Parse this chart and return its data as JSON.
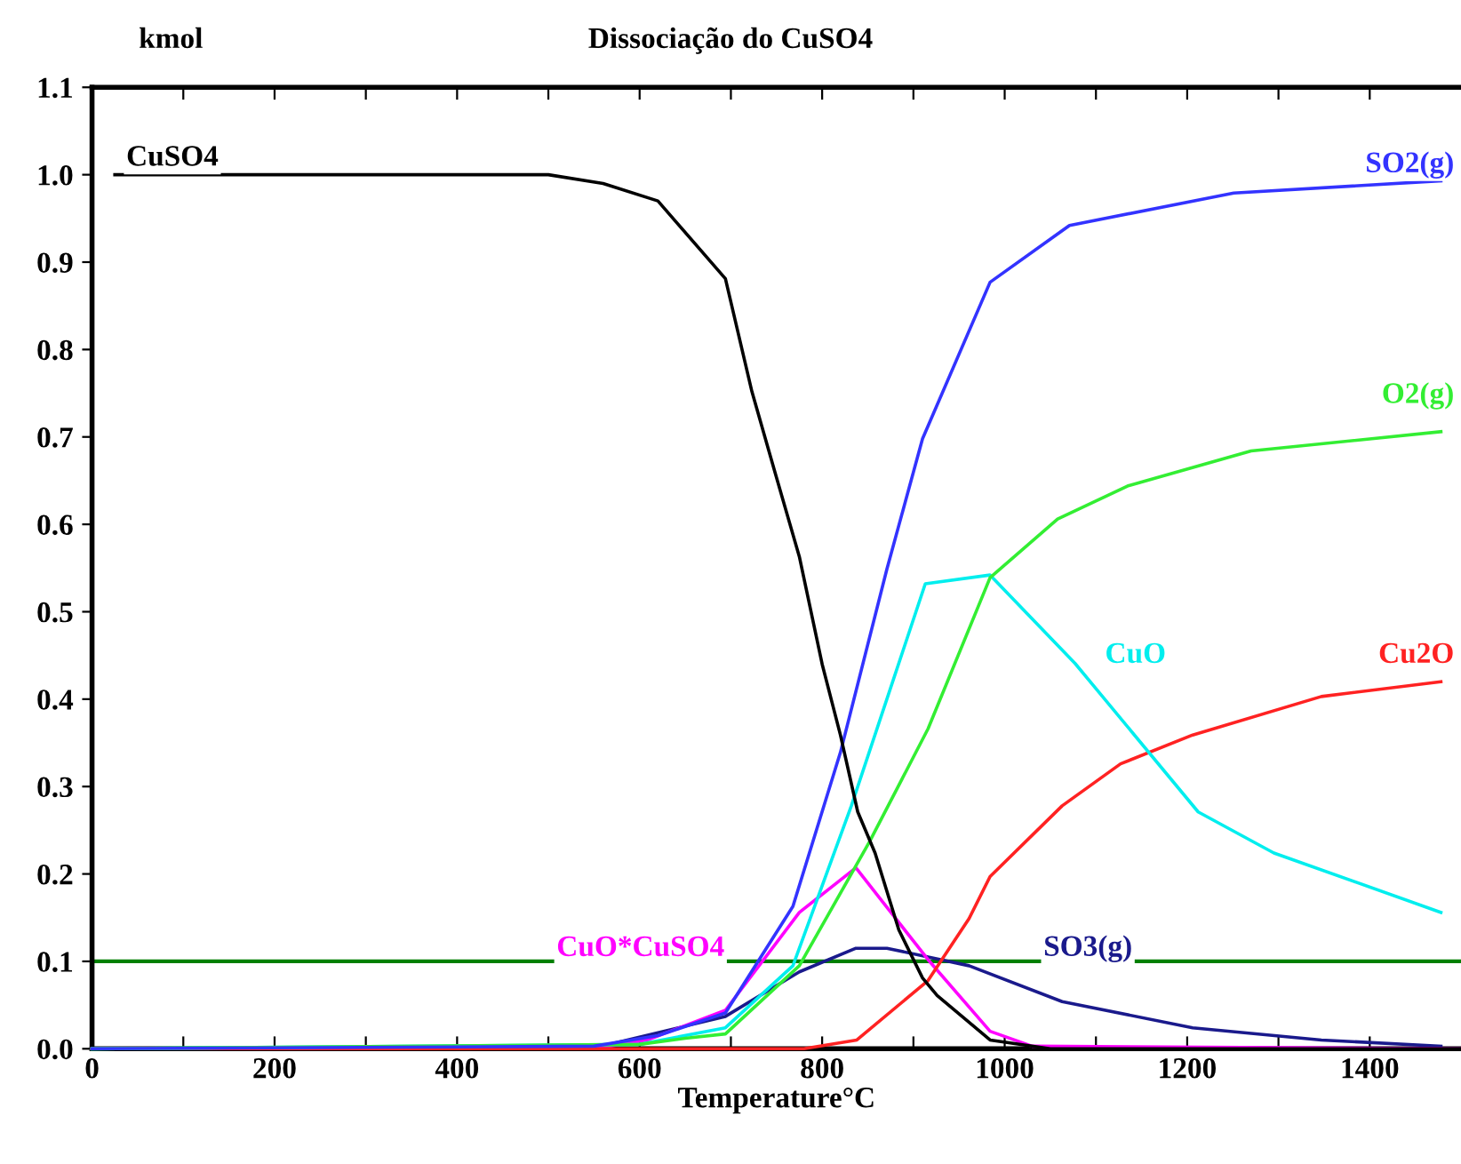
{
  "chart_data": {
    "type": "line",
    "title": "Dissociação do CuSO4",
    "ylabel": "kmol",
    "xlabel": "Temperature°C",
    "xlim": [
      0,
      1500
    ],
    "ylim": [
      0,
      1.1
    ],
    "xticks": [
      0,
      {
        "value": 100,
        "label": null
      },
      200,
      {
        "value": 300,
        "label": null
      },
      400,
      {
        "value": 500,
        "label": null
      },
      600,
      {
        "value": 700,
        "label": null
      },
      800,
      {
        "value": 900,
        "label": null
      },
      1000,
      {
        "value": 1100,
        "label": null
      },
      1200,
      {
        "value": 1300,
        "label": null
      },
      1400
    ],
    "yticks": [
      {
        "value": 0,
        "label": "0.0"
      },
      {
        "value": 0.1,
        "label": "0.1"
      },
      {
        "value": 0.2,
        "label": "0.2"
      },
      {
        "value": 0.3,
        "label": "0.3"
      },
      {
        "value": 0.4,
        "label": "0.4"
      },
      {
        "value": 0.5,
        "label": "0.5"
      },
      {
        "value": 0.6,
        "label": "0.6"
      },
      {
        "value": 0.7,
        "label": "0.7"
      },
      {
        "value": 0.8,
        "label": "0.8"
      },
      {
        "value": 0.9,
        "label": "0.9"
      },
      {
        "value": 1.0,
        "label": "1.0"
      },
      {
        "value": 1.1,
        "label": "1.1"
      }
    ],
    "grid": false,
    "legend": false,
    "marker": "none",
    "line_style": "solid",
    "ref_lines": [
      {
        "axis": "y",
        "value": 0.1,
        "color": "#008000"
      }
    ],
    "series": [
      {
        "name": "CuSO4",
        "color": "#000000",
        "x": [
          25,
          500,
          560,
          620,
          694,
          723,
          749,
          775,
          800,
          820,
          839,
          858,
          884,
          910,
          926,
          984,
          1050,
          1500
        ],
        "values": [
          1.0,
          1.0,
          0.99,
          0.97,
          0.881,
          0.752,
          0.657,
          0.563,
          0.44,
          0.359,
          0.271,
          0.224,
          0.136,
          0.081,
          0.061,
          0.01,
          0.0,
          0.0
        ]
      },
      {
        "name": "SO2(g)",
        "color": "#3333ff",
        "x": [
          0,
          550,
          620,
          694,
          768,
          820,
          871,
          910,
          984,
          1071,
          1251,
          1478
        ],
        "values": [
          0.0,
          0.003,
          0.015,
          0.041,
          0.163,
          0.339,
          0.549,
          0.698,
          0.877,
          0.942,
          0.979,
          0.993
        ]
      },
      {
        "name": "O2(g)",
        "color": "#33ee33",
        "x": [
          0,
          600,
          650,
          694,
          775,
          852,
          916,
          984,
          1058,
          1135,
          1270,
          1478
        ],
        "values": [
          0.0,
          0.005,
          0.012,
          0.017,
          0.095,
          0.237,
          0.366,
          0.539,
          0.606,
          0.644,
          0.684,
          0.706
        ]
      },
      {
        "name": "CuO",
        "color": "#00eeee",
        "x": [
          0,
          600,
          694,
          768,
          832,
          913,
          984,
          1077,
          1212,
          1295,
          1478
        ],
        "values": [
          0.0,
          0.005,
          0.024,
          0.095,
          0.278,
          0.532,
          0.542,
          0.441,
          0.271,
          0.224,
          0.156
        ]
      },
      {
        "name": "Cu2O",
        "color": "#ff2222",
        "x": [
          0,
          780,
          838,
          916,
          961,
          984,
          1063,
          1127,
          1206,
          1347,
          1478
        ],
        "values": [
          0.0,
          0.0,
          0.01,
          0.078,
          0.149,
          0.197,
          0.278,
          0.326,
          0.359,
          0.403,
          0.42
        ]
      },
      {
        "name": "CuO*CuSO4",
        "color": "#ff00ff",
        "x": [
          0,
          550,
          608,
          694,
          775,
          837,
          916,
          984,
          1030,
          1500
        ],
        "values": [
          0.0,
          0.0,
          0.01,
          0.044,
          0.156,
          0.207,
          0.102,
          0.02,
          0.003,
          0.0
        ]
      },
      {
        "name": "SO3(g)",
        "color": "#1a1a8c",
        "x": [
          0,
          559,
          694,
          775,
          837,
          871,
          916,
          961,
          1063,
          1206,
          1347,
          1478
        ],
        "values": [
          0.0,
          0.003,
          0.037,
          0.088,
          0.115,
          0.115,
          0.105,
          0.095,
          0.054,
          0.024,
          0.01,
          0.003
        ]
      }
    ]
  }
}
